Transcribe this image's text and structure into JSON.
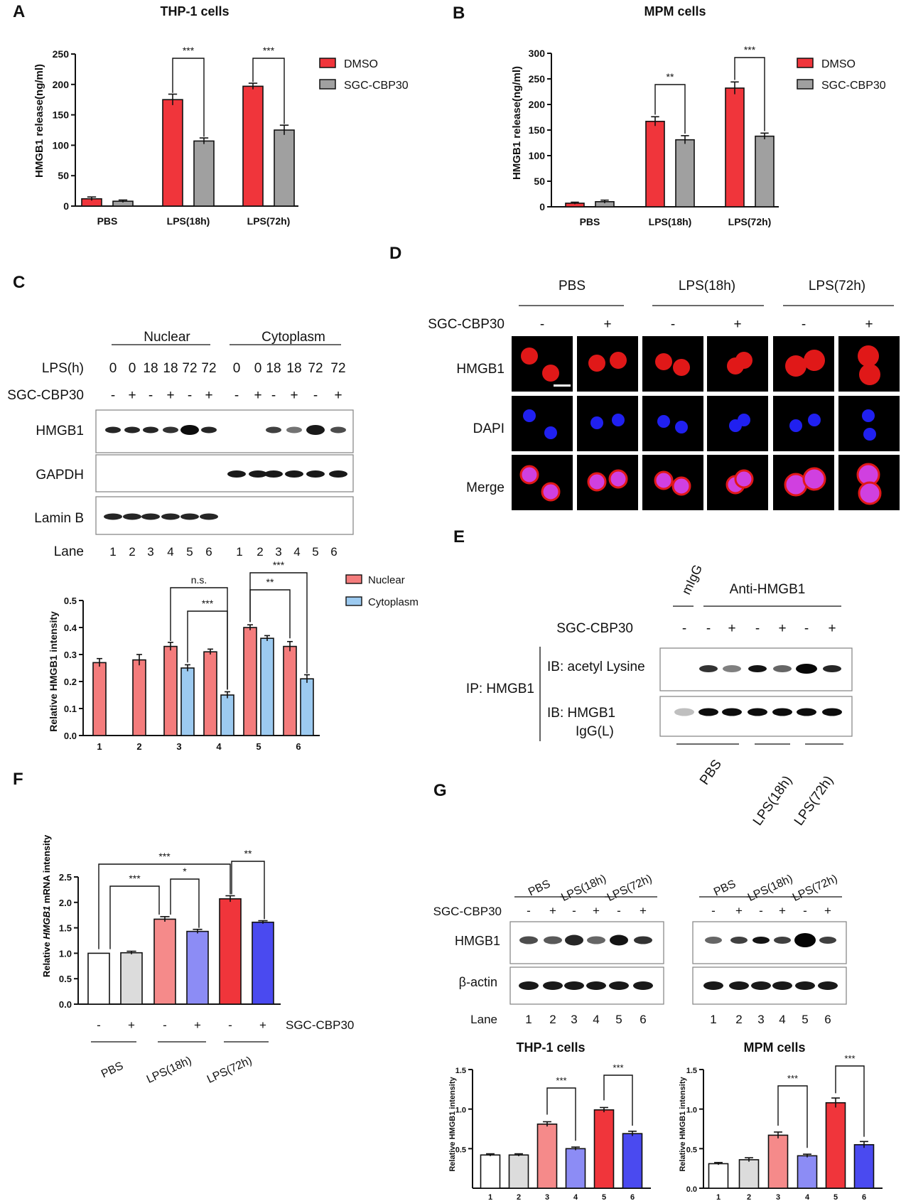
{
  "panel_labels": [
    "A",
    "B",
    "C",
    "D",
    "E",
    "F",
    "G"
  ],
  "colors": {
    "dmso_red": "#f0353b",
    "sgc_grey": "#a0a0a0",
    "nuclear": "#f47c7c",
    "cytoplasm": "#9ccaf0",
    "light_red": "#f58a8a",
    "light_blue": "#8c8cf5",
    "dark_blue": "#4a4af0",
    "light_grey": "#dcdcdc",
    "fluor_red": "#e01818",
    "fluor_blue": "#2020f0",
    "fluor_merge": "#d040e0"
  },
  "panelA": {
    "title": "THP-1 cells",
    "ylabel": "HMGB1 release(ng/ml)",
    "legend": [
      "DMSO",
      "SGC-CBP30"
    ],
    "sig": [
      "***",
      "***"
    ]
  },
  "panelB": {
    "title": "MPM cells",
    "ylabel": "HMGB1 release(ng/ml)",
    "legend": [
      "DMSO",
      "SGC-CBP30"
    ],
    "sig": [
      "**",
      "***"
    ]
  },
  "panelC": {
    "groups": [
      "Nuclear",
      "Cytoplasm"
    ],
    "lps_label": "LPS(h)",
    "lps_values": [
      "0",
      "0",
      "18",
      "18",
      "72",
      "72",
      "0",
      "0",
      "18",
      "18",
      "72",
      "72"
    ],
    "sgc_label": "SGC-CBP30",
    "sgc_values": [
      "-",
      "+",
      "-",
      "+",
      "-",
      "+",
      "-",
      "+",
      "-",
      "+",
      "-",
      "+"
    ],
    "blot_labels": [
      "HMGB1",
      "GAPDH",
      "Lamin B"
    ],
    "lane_label": "Lane",
    "lanes": [
      "1",
      "2",
      "3",
      "4",
      "5",
      "6",
      "1",
      "2",
      "3",
      "4",
      "5",
      "6"
    ],
    "ylabel": "Relative HMGB1 intensity",
    "legend": [
      "Nuclear",
      "Cytoplasm"
    ],
    "sig": [
      "n.s.",
      "***",
      "**",
      "***"
    ]
  },
  "panelD": {
    "conditions": [
      "PBS",
      "LPS(18h)",
      "LPS(72h)"
    ],
    "sgc_label": "SGC-CBP30",
    "sgc_values": [
      "-",
      "+",
      "-",
      "+",
      "-",
      "+"
    ],
    "rows": [
      "HMGB1",
      "DAPI",
      "Merge"
    ]
  },
  "panelE": {
    "col_labels": [
      "mIgG",
      "Anti-HMGB1"
    ],
    "sgc_label": "SGC-CBP30",
    "sgc_values": [
      "-",
      "-",
      "+",
      "-",
      "+",
      "-",
      "+"
    ],
    "ip_label": "IP:  HMGB1",
    "ib1": "IB: acetyl Lysine",
    "ib2a": "IB:  HMGB1",
    "ib2b": "IgG(L)",
    "conditions": [
      "PBS",
      "LPS(18h)",
      "LPS(72h)"
    ]
  },
  "panelF": {
    "ylabel_pre": "Relative ",
    "ylabel_gene": "HMGB1",
    "ylabel_post": " mRNA intensity",
    "sgc_label": "SGC-CBP30",
    "sgc_values": [
      "-",
      "+",
      "-",
      "+",
      "-",
      "+"
    ],
    "conditions": [
      "PBS",
      "LPS(18h)",
      "LPS(72h)"
    ],
    "sig": [
      "***",
      "***",
      "*",
      "**"
    ]
  },
  "panelG": {
    "conditions": [
      "PBS",
      "LPS(18h)",
      "LPS(72h)"
    ],
    "sgc_label": "SGC-CBP30",
    "sgc_values": [
      "-",
      "+",
      "-",
      "+",
      "-",
      "+"
    ],
    "blot_labels": [
      "HMGB1",
      "β-actin"
    ],
    "lane_label": "Lane",
    "lanes": [
      "1",
      "2",
      "3",
      "4",
      "5",
      "6"
    ],
    "chart_titles": [
      "THP-1 cells",
      "MPM cells"
    ],
    "ylabel": "Relative HMGB1 intensity",
    "sig": [
      "***",
      "***"
    ]
  },
  "chart_data": [
    {
      "id": "A",
      "type": "bar",
      "title": "THP-1 cells",
      "ylabel": "HMGB1 release(ng/ml)",
      "ylim": [
        0,
        250
      ],
      "yticks": [
        0,
        50,
        100,
        150,
        200,
        250
      ],
      "categories": [
        "PBS",
        "LPS(18h)",
        "LPS(72h)"
      ],
      "series": [
        {
          "name": "DMSO",
          "values": [
            12,
            175,
            197
          ],
          "errors": [
            3,
            9,
            5
          ]
        },
        {
          "name": "SGC-CBP30",
          "values": [
            8,
            107,
            125
          ],
          "errors": [
            2,
            5,
            8
          ]
        }
      ],
      "legend": "right"
    },
    {
      "id": "B",
      "type": "bar",
      "title": "MPM cells",
      "ylabel": "HMGB1 release(ng/ml)",
      "ylim": [
        0,
        300
      ],
      "yticks": [
        0,
        50,
        100,
        150,
        200,
        250,
        300
      ],
      "categories": [
        "PBS",
        "LPS(18h)",
        "LPS(72h)"
      ],
      "series": [
        {
          "name": "DMSO",
          "values": [
            7,
            167,
            232
          ],
          "errors": [
            2,
            9,
            12
          ]
        },
        {
          "name": "SGC-CBP30",
          "values": [
            10,
            131,
            138
          ],
          "errors": [
            3,
            8,
            6
          ]
        }
      ],
      "legend": "right"
    },
    {
      "id": "C",
      "type": "bar",
      "ylabel": "Relative HMGB1 intensity",
      "ylim": [
        0,
        0.5
      ],
      "yticks": [
        0.0,
        0.1,
        0.2,
        0.3,
        0.4,
        0.5
      ],
      "categories": [
        "1",
        "2",
        "3",
        "4",
        "5",
        "6"
      ],
      "series": [
        {
          "name": "Nuclear",
          "values": [
            0.27,
            0.28,
            0.33,
            0.31,
            0.4,
            0.33
          ],
          "errors": [
            0.015,
            0.02,
            0.015,
            0.01,
            0.01,
            0.018
          ]
        },
        {
          "name": "Cytoplasm",
          "values": [
            null,
            null,
            0.25,
            0.15,
            0.36,
            0.21
          ],
          "errors": [
            null,
            null,
            0.012,
            0.012,
            0.01,
            0.015
          ]
        }
      ],
      "legend": "right"
    },
    {
      "id": "F",
      "type": "bar",
      "ylabel": "Relative HMGB1 mRNA intensity",
      "ylim": [
        0,
        2.5
      ],
      "yticks": [
        0.0,
        0.5,
        1.0,
        1.5,
        2.0,
        2.5
      ],
      "categories": [
        "PBS -",
        "PBS +",
        "LPS(18h) -",
        "LPS(18h) +",
        "LPS(72h) -",
        "LPS(72h) +"
      ],
      "values": [
        1.0,
        1.01,
        1.67,
        1.43,
        2.07,
        1.61
      ],
      "errors": [
        0,
        0.03,
        0.05,
        0.04,
        0.06,
        0.03
      ]
    },
    {
      "id": "G-THP-1",
      "type": "bar",
      "title": "THP-1 cells",
      "ylabel": "Relative HMGB1 intensity",
      "ylim": [
        0,
        1.5
      ],
      "yticks": [
        0.5,
        1.0,
        1.5
      ],
      "categories": [
        "1",
        "2",
        "3",
        "4",
        "5",
        "6"
      ],
      "values": [
        0.42,
        0.42,
        0.81,
        0.5,
        0.99,
        0.69
      ],
      "errors": [
        0.015,
        0.015,
        0.03,
        0.02,
        0.03,
        0.03
      ]
    },
    {
      "id": "G-MPM",
      "type": "bar",
      "title": "MPM cells",
      "ylabel": "Relative HMGB1 intensity",
      "ylim": [
        0,
        1.5
      ],
      "yticks": [
        0.0,
        0.5,
        1.0,
        1.5
      ],
      "categories": [
        "1",
        "2",
        "3",
        "4",
        "5",
        "6"
      ],
      "values": [
        0.31,
        0.36,
        0.67,
        0.41,
        1.08,
        0.55
      ],
      "errors": [
        0.015,
        0.025,
        0.04,
        0.02,
        0.06,
        0.04
      ]
    }
  ]
}
